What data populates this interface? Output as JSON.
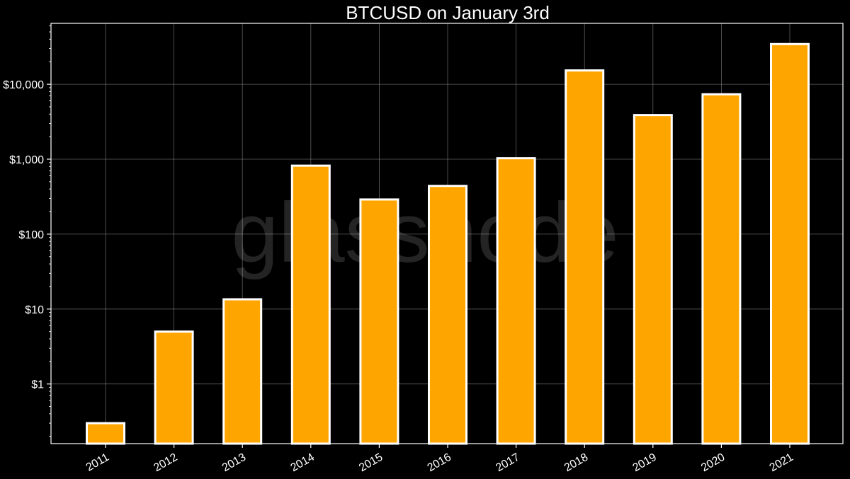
{
  "chart_data": {
    "type": "bar",
    "title": "BTCUSD on January 3rd",
    "xlabel": "",
    "ylabel": "",
    "categories": [
      "2011",
      "2012",
      "2013",
      "2014",
      "2015",
      "2016",
      "2017",
      "2018",
      "2019",
      "2020",
      "2021"
    ],
    "values": [
      0.3,
      5.0,
      13.5,
      820,
      290,
      440,
      1030,
      15300,
      3880,
      7350,
      34400
    ],
    "y_scale": "log",
    "ylim": [
      0.16,
      65000
    ],
    "y_ticks": [
      1,
      10,
      100,
      1000,
      10000
    ],
    "y_tick_labels": [
      "$1",
      "$10",
      "$100",
      "$1,000",
      "$10,000"
    ],
    "grid": true,
    "bar_color": "#FFA500",
    "bar_edge_color": "#FFFFFF",
    "background_color": "#000000",
    "watermark": "glassnode"
  }
}
